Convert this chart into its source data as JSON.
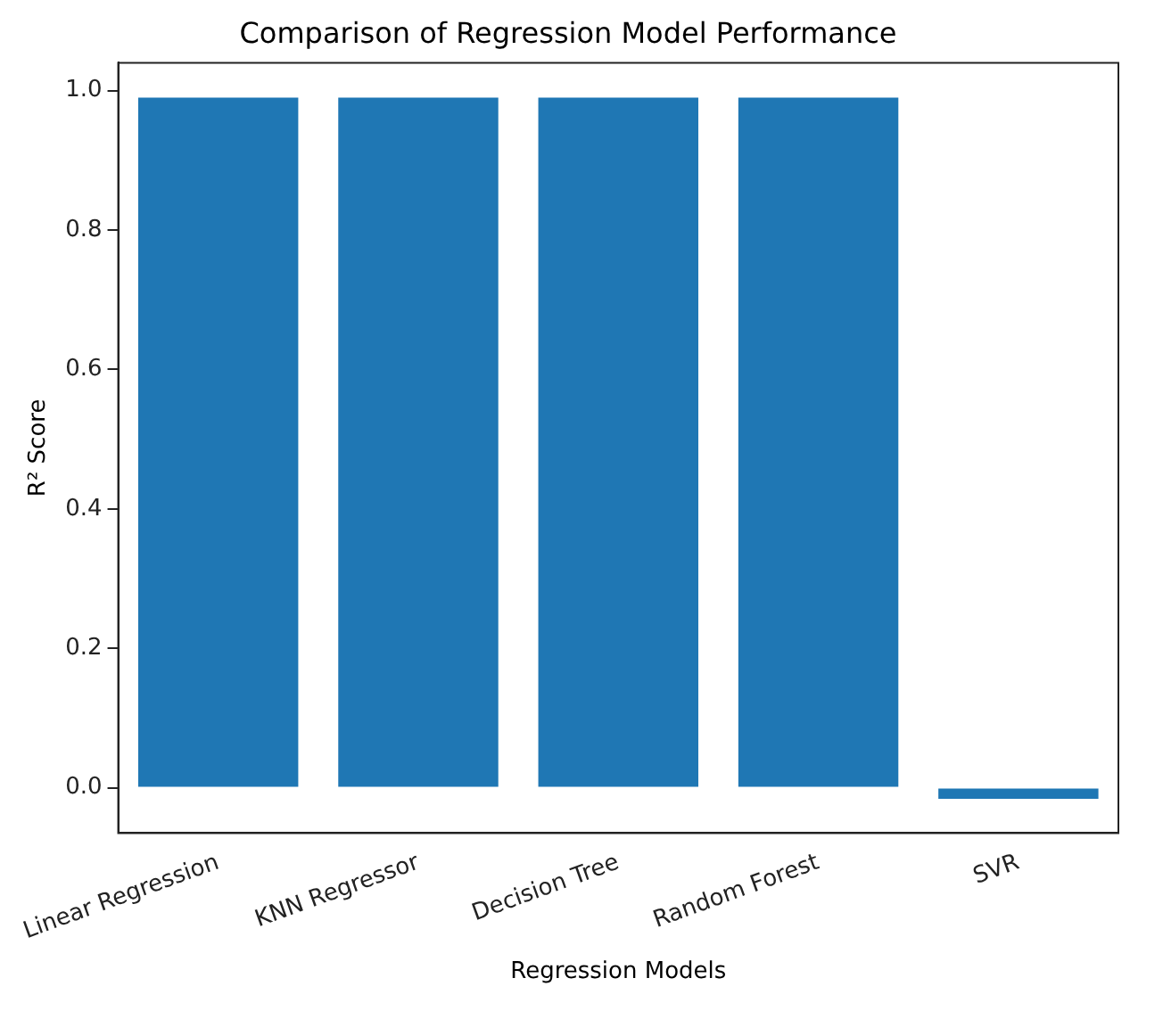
{
  "chart_data": {
    "type": "bar",
    "title": "Comparison of Regression Model Performance",
    "xlabel": "Regression Models",
    "ylabel": "R² Score",
    "categories": [
      "Linear Regression",
      "KNN Regressor",
      "Decision Tree",
      "Random Forest",
      "SVR"
    ],
    "values": [
      0.99,
      0.99,
      0.99,
      0.99,
      -0.016
    ],
    "color": "#1f77b4",
    "ylim": [
      -0.065,
      1.04
    ],
    "yticks": [
      {
        "value": 0,
        "label": "0.0"
      },
      0.2,
      0.4,
      0.6,
      0.8,
      {
        "value": 1,
        "label": "1.0"
      }
    ],
    "grid": false,
    "legend": false
  }
}
